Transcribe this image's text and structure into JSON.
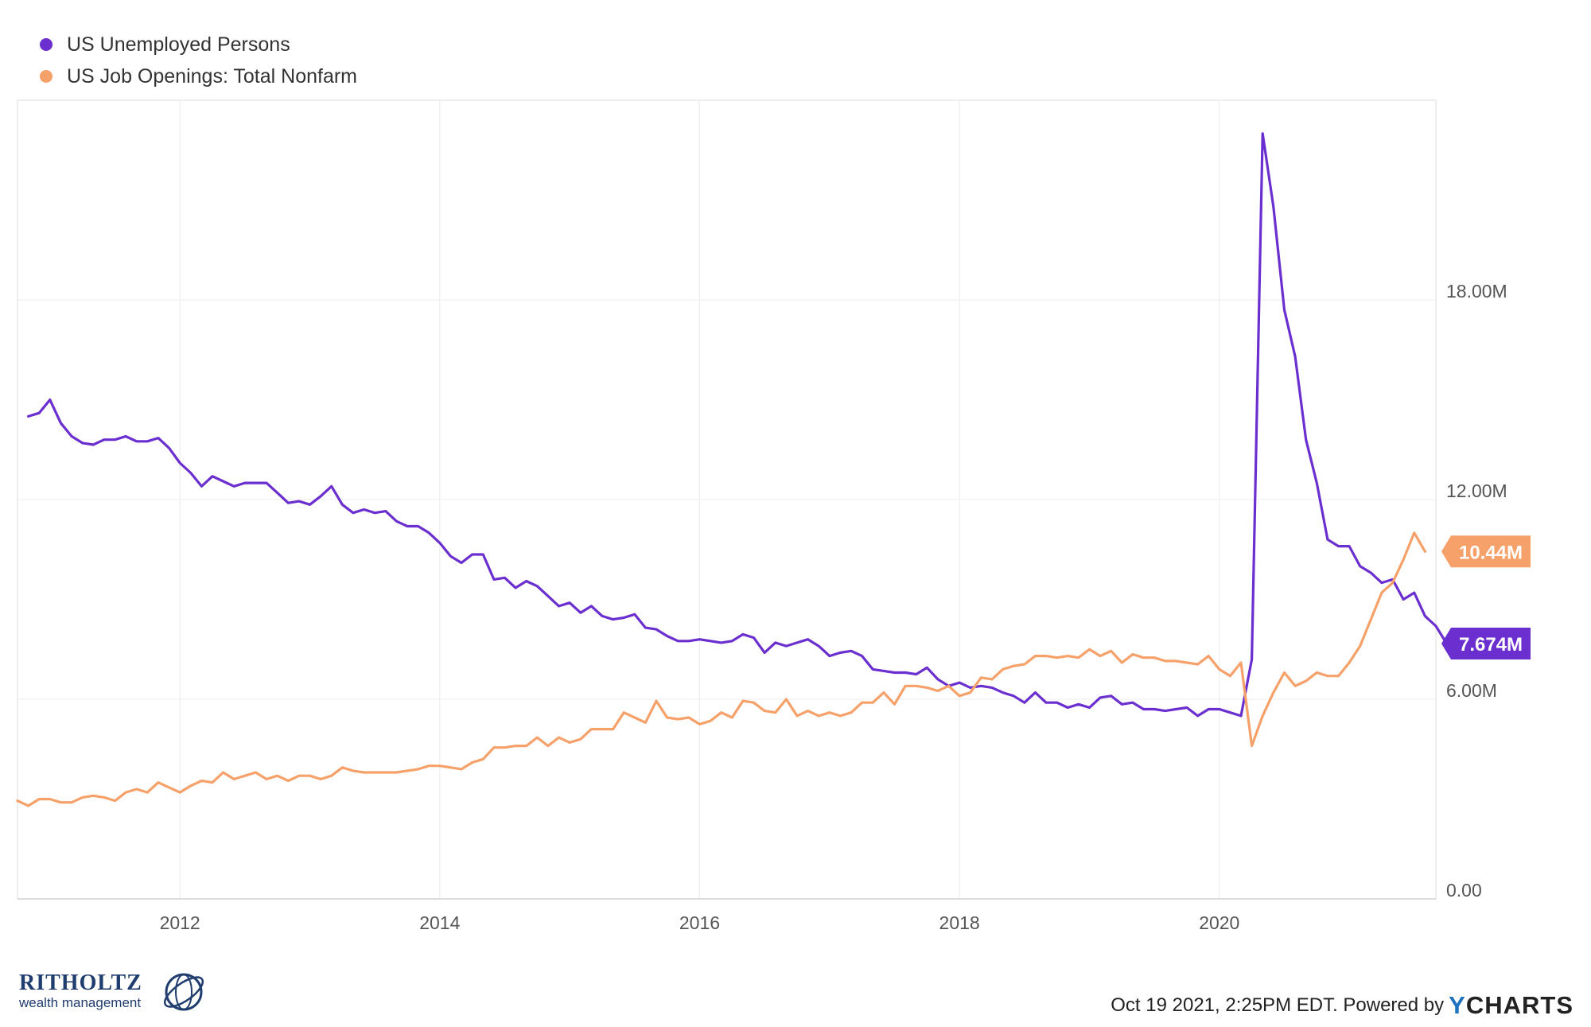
{
  "legend": {
    "items": [
      {
        "label": "US Unemployed Persons",
        "color": "#6b2fcf"
      },
      {
        "label": "US Job Openings: Total Nonfarm",
        "color": "#f7a16a"
      }
    ]
  },
  "footer": {
    "timestamp": "Oct 19 2021, 2:25PM EDT. Powered by",
    "brand_letter": "Y",
    "brand_rest": "CHARTS",
    "logo_name": "RITHOLTZ",
    "logo_tagline": "wealth management"
  },
  "chart_data": {
    "type": "line",
    "title": "",
    "xlabel": "",
    "ylabel": "",
    "x_range": [
      "2010-10",
      "2021-09"
    ],
    "ylim": [
      0,
      24000000
    ],
    "x_ticks": [
      "2012",
      "2014",
      "2016",
      "2018",
      "2020"
    ],
    "y_ticks": [
      "0.00",
      "6.00M",
      "12.00M",
      "18.00M"
    ],
    "grid": true,
    "legend_position": "top-left",
    "series": [
      {
        "name": "US Unemployed Persons",
        "color": "#6b2fcf",
        "last_label": "7.674M",
        "points": [
          [
            "2010-11",
            14.5
          ],
          [
            "2010-12",
            14.6
          ],
          [
            "2011-01",
            15.0
          ],
          [
            "2011-02",
            14.3
          ],
          [
            "2011-03",
            13.9
          ],
          [
            "2011-04",
            13.7
          ],
          [
            "2011-05",
            13.65
          ],
          [
            "2011-06",
            13.8
          ],
          [
            "2011-07",
            13.8
          ],
          [
            "2011-08",
            13.9
          ],
          [
            "2011-09",
            13.75
          ],
          [
            "2011-10",
            13.75
          ],
          [
            "2011-11",
            13.85
          ],
          [
            "2011-12",
            13.55
          ],
          [
            "2012-01",
            13.1
          ],
          [
            "2012-02",
            12.8
          ],
          [
            "2012-03",
            12.4
          ],
          [
            "2012-04",
            12.7
          ],
          [
            "2012-05",
            12.55
          ],
          [
            "2012-06",
            12.4
          ],
          [
            "2012-07",
            12.5
          ],
          [
            "2012-08",
            12.5
          ],
          [
            "2012-09",
            12.5
          ],
          [
            "2012-10",
            12.2
          ],
          [
            "2012-11",
            11.9
          ],
          [
            "2012-12",
            11.95
          ],
          [
            "2013-01",
            11.85
          ],
          [
            "2013-02",
            12.1
          ],
          [
            "2013-03",
            12.4
          ],
          [
            "2013-04",
            11.85
          ],
          [
            "2013-05",
            11.6
          ],
          [
            "2013-06",
            11.7
          ],
          [
            "2013-07",
            11.6
          ],
          [
            "2013-08",
            11.65
          ],
          [
            "2013-09",
            11.35
          ],
          [
            "2013-10",
            11.2
          ],
          [
            "2013-11",
            11.2
          ],
          [
            "2013-12",
            11.0
          ],
          [
            "2014-01",
            10.7
          ],
          [
            "2014-02",
            10.3
          ],
          [
            "2014-03",
            10.1
          ],
          [
            "2014-04",
            10.35
          ],
          [
            "2014-05",
            10.35
          ],
          [
            "2014-06",
            9.6
          ],
          [
            "2014-07",
            9.65
          ],
          [
            "2014-08",
            9.35
          ],
          [
            "2014-09",
            9.55
          ],
          [
            "2014-10",
            9.4
          ],
          [
            "2014-11",
            9.1
          ],
          [
            "2014-12",
            8.8
          ],
          [
            "2015-01",
            8.9
          ],
          [
            "2015-02",
            8.6
          ],
          [
            "2015-03",
            8.8
          ],
          [
            "2015-04",
            8.5
          ],
          [
            "2015-05",
            8.4
          ],
          [
            "2015-06",
            8.45
          ],
          [
            "2015-07",
            8.55
          ],
          [
            "2015-08",
            8.15
          ],
          [
            "2015-09",
            8.1
          ],
          [
            "2015-10",
            7.9
          ],
          [
            "2015-11",
            7.75
          ],
          [
            "2015-12",
            7.75
          ],
          [
            "2016-01",
            7.8
          ],
          [
            "2016-02",
            7.75
          ],
          [
            "2016-03",
            7.7
          ],
          [
            "2016-04",
            7.75
          ],
          [
            "2016-05",
            7.95
          ],
          [
            "2016-06",
            7.85
          ],
          [
            "2016-07",
            7.4
          ],
          [
            "2016-08",
            7.7
          ],
          [
            "2016-09",
            7.6
          ],
          [
            "2016-10",
            7.7
          ],
          [
            "2016-11",
            7.8
          ],
          [
            "2016-12",
            7.6
          ],
          [
            "2017-01",
            7.3
          ],
          [
            "2017-02",
            7.4
          ],
          [
            "2017-03",
            7.45
          ],
          [
            "2017-04",
            7.3
          ],
          [
            "2017-05",
            6.9
          ],
          [
            "2017-06",
            6.85
          ],
          [
            "2017-07",
            6.8
          ],
          [
            "2017-08",
            6.8
          ],
          [
            "2017-09",
            6.75
          ],
          [
            "2017-10",
            6.95
          ],
          [
            "2017-11",
            6.6
          ],
          [
            "2017-12",
            6.4
          ],
          [
            "2018-01",
            6.5
          ],
          [
            "2018-02",
            6.35
          ],
          [
            "2018-03",
            6.4
          ],
          [
            "2018-04",
            6.35
          ],
          [
            "2018-05",
            6.2
          ],
          [
            "2018-06",
            6.1
          ],
          [
            "2018-07",
            5.9
          ],
          [
            "2018-08",
            6.2
          ],
          [
            "2018-09",
            5.9
          ],
          [
            "2018-10",
            5.9
          ],
          [
            "2018-11",
            5.75
          ],
          [
            "2018-12",
            5.85
          ],
          [
            "2019-01",
            5.75
          ],
          [
            "2019-02",
            6.05
          ],
          [
            "2019-03",
            6.1
          ],
          [
            "2019-04",
            5.85
          ],
          [
            "2019-05",
            5.9
          ],
          [
            "2019-06",
            5.7
          ],
          [
            "2019-07",
            5.7
          ],
          [
            "2019-08",
            5.65
          ],
          [
            "2019-09",
            5.7
          ],
          [
            "2019-10",
            5.75
          ],
          [
            "2019-11",
            5.5
          ],
          [
            "2019-12",
            5.7
          ],
          [
            "2020-01",
            5.7
          ],
          [
            "2020-02",
            5.6
          ],
          [
            "2020-03",
            5.5
          ],
          [
            "2020-04",
            7.2
          ],
          [
            "2020-05",
            23.0
          ],
          [
            "2020-06",
            20.8
          ],
          [
            "2020-07",
            17.7
          ],
          [
            "2020-08",
            16.3
          ],
          [
            "2020-09",
            13.8
          ],
          [
            "2020-10",
            12.5
          ],
          [
            "2020-11",
            10.8
          ],
          [
            "2020-12",
            10.6
          ],
          [
            "2021-01",
            10.6
          ],
          [
            "2021-02",
            10.0
          ],
          [
            "2021-03",
            9.8
          ],
          [
            "2021-04",
            9.5
          ],
          [
            "2021-05",
            9.6
          ],
          [
            "2021-06",
            9.0
          ],
          [
            "2021-07",
            9.2
          ],
          [
            "2021-08",
            8.5
          ],
          [
            "2021-09",
            8.2
          ],
          [
            "2021-10",
            7.674
          ]
        ]
      },
      {
        "name": "US Job Openings: Total Nonfarm",
        "color": "#f7a16a",
        "last_label": "10.44M",
        "points": [
          [
            "2010-10",
            2.95
          ],
          [
            "2010-11",
            2.8
          ],
          [
            "2010-12",
            3.0
          ],
          [
            "2011-01",
            3.0
          ],
          [
            "2011-02",
            2.9
          ],
          [
            "2011-03",
            2.9
          ],
          [
            "2011-04",
            3.05
          ],
          [
            "2011-05",
            3.1
          ],
          [
            "2011-06",
            3.05
          ],
          [
            "2011-07",
            2.95
          ],
          [
            "2011-08",
            3.2
          ],
          [
            "2011-09",
            3.3
          ],
          [
            "2011-10",
            3.2
          ],
          [
            "2011-11",
            3.5
          ],
          [
            "2011-12",
            3.35
          ],
          [
            "2012-01",
            3.2
          ],
          [
            "2012-02",
            3.4
          ],
          [
            "2012-03",
            3.55
          ],
          [
            "2012-04",
            3.5
          ],
          [
            "2012-05",
            3.8
          ],
          [
            "2012-06",
            3.6
          ],
          [
            "2012-07",
            3.7
          ],
          [
            "2012-08",
            3.8
          ],
          [
            "2012-09",
            3.6
          ],
          [
            "2012-10",
            3.7
          ],
          [
            "2012-11",
            3.55
          ],
          [
            "2012-12",
            3.7
          ],
          [
            "2013-01",
            3.7
          ],
          [
            "2013-02",
            3.6
          ],
          [
            "2013-03",
            3.7
          ],
          [
            "2013-04",
            3.95
          ],
          [
            "2013-05",
            3.85
          ],
          [
            "2013-06",
            3.8
          ],
          [
            "2013-07",
            3.8
          ],
          [
            "2013-08",
            3.8
          ],
          [
            "2013-09",
            3.8
          ],
          [
            "2013-10",
            3.85
          ],
          [
            "2013-11",
            3.9
          ],
          [
            "2013-12",
            4.0
          ],
          [
            "2014-01",
            4.0
          ],
          [
            "2014-02",
            3.95
          ],
          [
            "2014-03",
            3.9
          ],
          [
            "2014-04",
            4.1
          ],
          [
            "2014-05",
            4.2
          ],
          [
            "2014-06",
            4.55
          ],
          [
            "2014-07",
            4.55
          ],
          [
            "2014-08",
            4.6
          ],
          [
            "2014-09",
            4.6
          ],
          [
            "2014-10",
            4.85
          ],
          [
            "2014-11",
            4.6
          ],
          [
            "2014-12",
            4.85
          ],
          [
            "2015-01",
            4.7
          ],
          [
            "2015-02",
            4.8
          ],
          [
            "2015-03",
            5.1
          ],
          [
            "2015-04",
            5.1
          ],
          [
            "2015-05",
            5.1
          ],
          [
            "2015-06",
            5.6
          ],
          [
            "2015-07",
            5.45
          ],
          [
            "2015-08",
            5.3
          ],
          [
            "2015-09",
            5.95
          ],
          [
            "2015-10",
            5.45
          ],
          [
            "2015-11",
            5.4
          ],
          [
            "2015-12",
            5.45
          ],
          [
            "2016-01",
            5.25
          ],
          [
            "2016-02",
            5.35
          ],
          [
            "2016-03",
            5.6
          ],
          [
            "2016-04",
            5.45
          ],
          [
            "2016-05",
            5.95
          ],
          [
            "2016-06",
            5.9
          ],
          [
            "2016-07",
            5.65
          ],
          [
            "2016-08",
            5.6
          ],
          [
            "2016-09",
            6.0
          ],
          [
            "2016-10",
            5.5
          ],
          [
            "2016-11",
            5.65
          ],
          [
            "2016-12",
            5.5
          ],
          [
            "2017-01",
            5.6
          ],
          [
            "2017-02",
            5.5
          ],
          [
            "2017-03",
            5.6
          ],
          [
            "2017-04",
            5.9
          ],
          [
            "2017-05",
            5.9
          ],
          [
            "2017-06",
            6.2
          ],
          [
            "2017-07",
            5.85
          ],
          [
            "2017-08",
            6.4
          ],
          [
            "2017-09",
            6.4
          ],
          [
            "2017-10",
            6.35
          ],
          [
            "2017-11",
            6.25
          ],
          [
            "2017-12",
            6.4
          ],
          [
            "2018-01",
            6.1
          ],
          [
            "2018-02",
            6.2
          ],
          [
            "2018-03",
            6.65
          ],
          [
            "2018-04",
            6.6
          ],
          [
            "2018-05",
            6.9
          ],
          [
            "2018-06",
            7.0
          ],
          [
            "2018-07",
            7.05
          ],
          [
            "2018-08",
            7.3
          ],
          [
            "2018-09",
            7.3
          ],
          [
            "2018-10",
            7.25
          ],
          [
            "2018-11",
            7.3
          ],
          [
            "2018-12",
            7.25
          ],
          [
            "2019-01",
            7.5
          ],
          [
            "2019-02",
            7.3
          ],
          [
            "2019-03",
            7.45
          ],
          [
            "2019-04",
            7.1
          ],
          [
            "2019-05",
            7.35
          ],
          [
            "2019-06",
            7.25
          ],
          [
            "2019-07",
            7.25
          ],
          [
            "2019-08",
            7.15
          ],
          [
            "2019-09",
            7.15
          ],
          [
            "2019-10",
            7.1
          ],
          [
            "2019-11",
            7.05
          ],
          [
            "2019-12",
            7.3
          ],
          [
            "2020-01",
            6.9
          ],
          [
            "2020-02",
            6.7
          ],
          [
            "2020-03",
            7.1
          ],
          [
            "2020-04",
            4.6
          ],
          [
            "2020-05",
            5.5
          ],
          [
            "2020-06",
            6.2
          ],
          [
            "2020-07",
            6.8
          ],
          [
            "2020-08",
            6.4
          ],
          [
            "2020-09",
            6.55
          ],
          [
            "2020-10",
            6.8
          ],
          [
            "2020-11",
            6.7
          ],
          [
            "2020-12",
            6.7
          ],
          [
            "2021-01",
            7.1
          ],
          [
            "2021-02",
            7.6
          ],
          [
            "2021-03",
            8.4
          ],
          [
            "2021-04",
            9.2
          ],
          [
            "2021-05",
            9.5
          ],
          [
            "2021-06",
            10.2
          ],
          [
            "2021-07",
            11.0
          ],
          [
            "2021-08",
            10.44
          ]
        ]
      }
    ]
  }
}
